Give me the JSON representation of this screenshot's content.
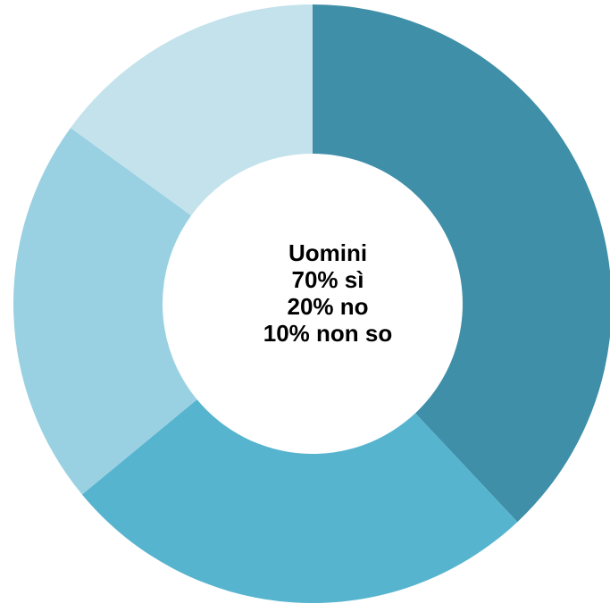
{
  "chart_data": {
    "type": "pie",
    "variant": "donut",
    "slice_values": [
      38,
      26,
      21,
      15
    ],
    "slice_colors": [
      "#3f8fa8",
      "#56b4cf",
      "#9ad1e2",
      "#c3e2ec"
    ],
    "center_text": [
      "Uomini",
      "70% sì",
      "20% no",
      "10% non so"
    ],
    "title": "",
    "legend": "none"
  }
}
